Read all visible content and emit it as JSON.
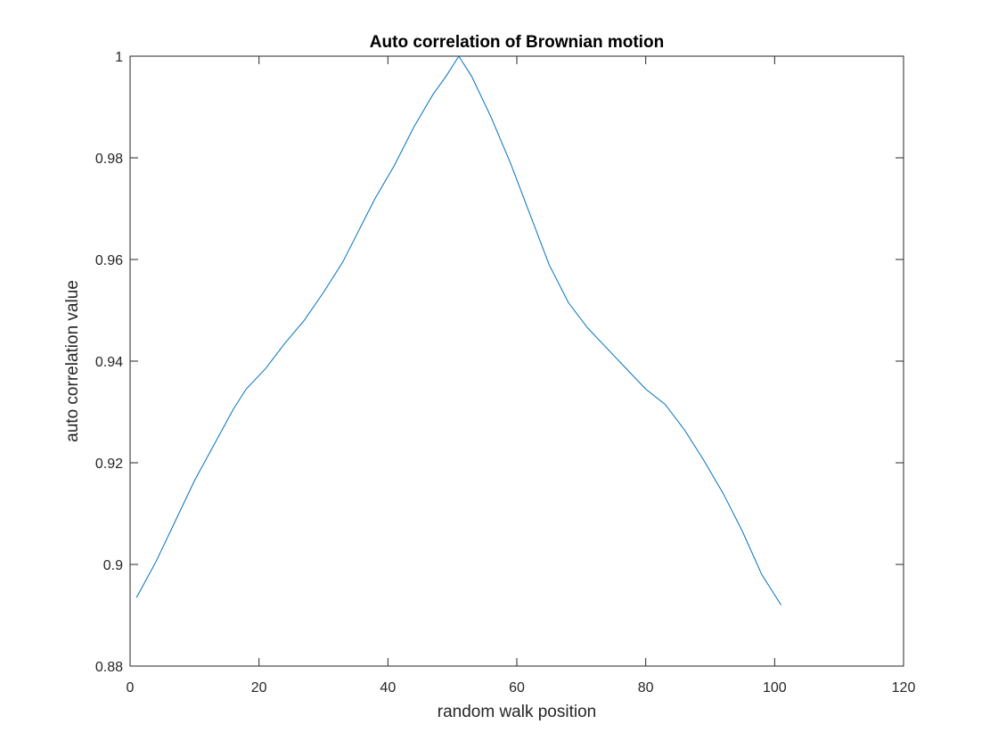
{
  "chart_data": {
    "type": "line",
    "title": "Auto correlation of Brownian motion",
    "xlabel": "random walk position",
    "ylabel": "auto correlation value",
    "xlim": [
      0,
      120
    ],
    "ylim": [
      0.88,
      1.0
    ],
    "xticks": [
      0,
      20,
      40,
      60,
      80,
      100,
      120
    ],
    "yticks": [
      0.88,
      0.9,
      0.92,
      0.94,
      0.96,
      0.98,
      1.0
    ],
    "xtick_labels": [
      "0",
      "20",
      "40",
      "60",
      "80",
      "100",
      "120"
    ],
    "ytick_labels": [
      "0.88",
      "0.9",
      "0.92",
      "0.94",
      "0.96",
      "0.98",
      "1"
    ],
    "grid": false,
    "series": [
      {
        "color": "#0072BD",
        "x": [
          1,
          4,
          7,
          10,
          13,
          16,
          18,
          21,
          24,
          27,
          30,
          33,
          35,
          38,
          41,
          44,
          47,
          49,
          51,
          53,
          56,
          59,
          62,
          65,
          68,
          71,
          74,
          77,
          80,
          83,
          86,
          89,
          92,
          95,
          98,
          101
        ],
        "y": [
          0.8935,
          0.9005,
          0.9085,
          0.9165,
          0.9235,
          0.9305,
          0.9345,
          0.9385,
          0.9435,
          0.948,
          0.9535,
          0.9595,
          0.9645,
          0.972,
          0.9785,
          0.986,
          0.9925,
          0.996,
          1.0,
          0.996,
          0.988,
          0.979,
          0.969,
          0.959,
          0.9515,
          0.9465,
          0.9425,
          0.9385,
          0.9345,
          0.9315,
          0.9265,
          0.9205,
          0.914,
          0.9065,
          0.898,
          0.892
        ]
      }
    ]
  }
}
